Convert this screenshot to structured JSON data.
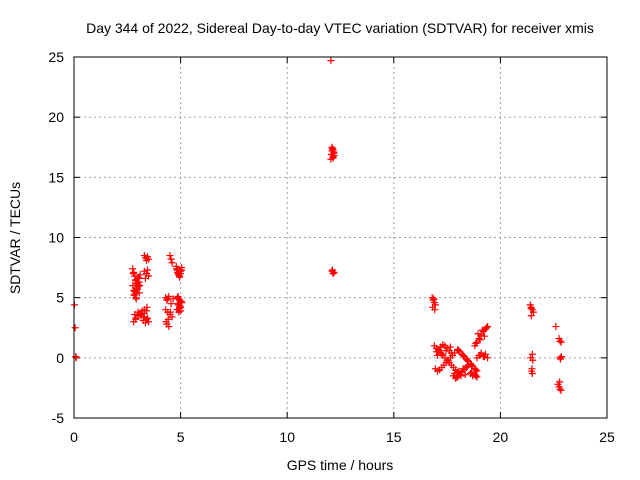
{
  "chart_data": {
    "type": "scatter",
    "title": "Day 344 of 2022, Sidereal Day-to-day VTEC variation (SDTVAR) for receiver xmis",
    "xlabel": "GPS time / hours",
    "ylabel": "SDTVAR / TECUs",
    "xlim": [
      0,
      25
    ],
    "ylim": [
      -5,
      25
    ],
    "xticks": [
      0,
      5,
      10,
      15,
      20,
      25
    ],
    "yticks": [
      -5,
      0,
      5,
      10,
      15,
      20,
      25
    ],
    "xtick_labels": [
      "0",
      "5",
      "10",
      "15",
      "20",
      "25"
    ],
    "ytick_labels": [
      "-5",
      "0",
      "5",
      "10",
      "15",
      "20",
      "25"
    ],
    "grid": true,
    "marker": "+",
    "marker_color": "#ff0000",
    "series": [
      {
        "name": "SDTVAR",
        "x": [
          0.02,
          0.05,
          0.08,
          0.1,
          2.75,
          2.8,
          2.85,
          2.9,
          2.95,
          3.0,
          3.05,
          3.1,
          2.8,
          2.85,
          2.9,
          2.95,
          3.0,
          3.05,
          2.78,
          2.88,
          2.98,
          3.08,
          2.82,
          2.92,
          3.02,
          2.76,
          2.86,
          2.96,
          3.06,
          2.8,
          2.9,
          3.0,
          3.1,
          3.2,
          3.3,
          3.4,
          3.5,
          2.85,
          3.0,
          3.15,
          3.25,
          3.35,
          3.45,
          2.9,
          3.1,
          3.3,
          3.4,
          3.3,
          3.35,
          3.4,
          3.45,
          3.5,
          3.3,
          3.4,
          3.5,
          3.35,
          3.45,
          3.3,
          3.42,
          4.3,
          4.35,
          4.4,
          4.45,
          4.3,
          4.4,
          4.35,
          4.45,
          4.32,
          4.42,
          4.5,
          4.55,
          4.6,
          4.65,
          4.5,
          4.6,
          4.55,
          4.52,
          4.8,
          4.85,
          4.9,
          4.95,
          5.0,
          5.05,
          4.85,
          4.95,
          5.05,
          4.9,
          5.0,
          4.82,
          4.92,
          5.02,
          4.88,
          4.98,
          4.8,
          4.85,
          4.9,
          4.95,
          5.0,
          5.05,
          4.85,
          4.95,
          5.05,
          4.9,
          5.0,
          12.05,
          12.1,
          12.15,
          12.2,
          12.1,
          12.15,
          12.05,
          12.2,
          12.1,
          12.15,
          12.12,
          12.08,
          12.18,
          12.1,
          12.15,
          12.2,
          12.12,
          16.8,
          16.85,
          16.9,
          16.95,
          16.82,
          16.92,
          16.88,
          16.9,
          17.0,
          17.1,
          17.2,
          17.3,
          17.4,
          17.5,
          17.6,
          17.7,
          17.8,
          17.9,
          18.0,
          16.95,
          17.05,
          17.15,
          17.25,
          17.35,
          17.45,
          17.55,
          17.65,
          17.75,
          17.85,
          17.0,
          17.1,
          17.2,
          17.3,
          17.4,
          17.5,
          17.6,
          17.7,
          17.05,
          17.25,
          17.45,
          17.65,
          17.8,
          17.9,
          18.0,
          18.1,
          18.2,
          18.3,
          18.4,
          18.5,
          17.85,
          18.05,
          18.25,
          18.45,
          17.95,
          18.15,
          18.35,
          18.0,
          18.1,
          18.2,
          18.3,
          18.4,
          18.5,
          18.6,
          18.7,
          18.8,
          18.9,
          18.05,
          18.25,
          18.45,
          18.65,
          18.85,
          18.8,
          18.9,
          19.0,
          19.1,
          19.2,
          19.3,
          19.4,
          18.85,
          19.05,
          19.25,
          18.95,
          19.15,
          19.35,
          18.9,
          19.0,
          19.1,
          19.2,
          19.3,
          19.4,
          19.05,
          19.25,
          18.6,
          18.7,
          18.8,
          18.9,
          18.65,
          18.85,
          21.4,
          21.45,
          21.5,
          21.55,
          21.45,
          21.5,
          21.42,
          21.52,
          21.48,
          21.46,
          21.5,
          21.44,
          22.6,
          22.7,
          22.8,
          22.75,
          22.85,
          22.8,
          22.82,
          22.78,
          22.76,
          22.84,
          22.8,
          22.86
        ],
        "y": [
          4.4,
          2.5,
          0.1,
          0.0,
          7.4,
          7.1,
          6.8,
          6.5,
          6.2,
          5.9,
          6.3,
          6.9,
          5.6,
          5.3,
          5.0,
          5.8,
          6.1,
          6.6,
          7.0,
          6.4,
          5.7,
          6.0,
          5.2,
          4.9,
          6.7,
          6.0,
          5.5,
          6.2,
          5.4,
          3.0,
          3.3,
          3.5,
          3.7,
          3.9,
          3.4,
          3.2,
          3.0,
          3.6,
          3.8,
          3.5,
          3.1,
          2.9,
          3.3,
          3.2,
          3.6,
          3.7,
          3.9,
          8.5,
          8.3,
          8.1,
          8.4,
          8.2,
          7.2,
          7.0,
          6.8,
          6.6,
          7.3,
          4.0,
          4.2,
          5.0,
          4.8,
          4.9,
          5.1,
          4.0,
          3.8,
          2.8,
          2.6,
          3.0,
          3.2,
          8.5,
          8.2,
          7.9,
          4.9,
          3.6,
          3.4,
          4.5,
          3.8,
          7.6,
          7.3,
          7.0,
          6.8,
          7.2,
          7.5,
          5.0,
          4.8,
          4.6,
          4.4,
          4.2,
          4.0,
          3.8,
          4.7,
          5.1,
          4.3,
          7.4,
          7.1,
          6.9,
          6.7,
          7.0,
          7.3,
          4.5,
          4.1,
          4.6,
          4.9,
          3.9,
          24.7,
          17.5,
          17.3,
          17.1,
          16.9,
          16.7,
          16.5,
          16.8,
          17.2,
          16.6,
          17.4,
          16.9,
          17.0,
          7.2,
          7.0,
          7.1,
          7.3,
          5.0,
          4.8,
          4.6,
          4.4,
          4.2,
          4.0,
          4.9,
          1.0,
          0.8,
          0.6,
          0.4,
          0.2,
          0.0,
          -0.2,
          -0.4,
          -0.6,
          -0.8,
          -1.0,
          -1.2,
          -0.9,
          -1.1,
          -1.0,
          -0.8,
          -0.6,
          -0.4,
          -0.2,
          0.0,
          0.2,
          0.4,
          0.5,
          0.7,
          0.9,
          1.1,
          1.0,
          0.8,
          0.6,
          0.4,
          0.2,
          0.3,
          0.6,
          0.9,
          -1.5,
          -1.7,
          -1.6,
          -1.4,
          -1.2,
          -1.0,
          -0.8,
          -0.6,
          -1.3,
          -1.1,
          -0.9,
          -0.7,
          -1.6,
          -1.5,
          -1.4,
          0.7,
          0.5,
          0.3,
          0.1,
          -0.1,
          -0.3,
          -0.5,
          -0.7,
          -0.9,
          -1.1,
          0.6,
          0.2,
          -0.2,
          -0.6,
          -1.0,
          1.0,
          1.3,
          1.6,
          1.9,
          2.2,
          2.4,
          2.6,
          1.2,
          1.5,
          1.8,
          2.0,
          2.3,
          2.5,
          0.0,
          0.2,
          0.4,
          0.1,
          0.3,
          0.0,
          0.2,
          0.1,
          -1.3,
          -1.5,
          -1.4,
          -1.6,
          -1.2,
          -1.5,
          4.4,
          4.2,
          4.0,
          3.8,
          3.5,
          0.3,
          0.0,
          -0.2,
          -0.9,
          -1.1,
          -1.3,
          4.1,
          2.6,
          -2.2,
          -2.6,
          1.6,
          1.3,
          0.0,
          -0.1,
          -2.0,
          -2.4,
          -2.7,
          1.4,
          0.1
        ]
      }
    ]
  }
}
